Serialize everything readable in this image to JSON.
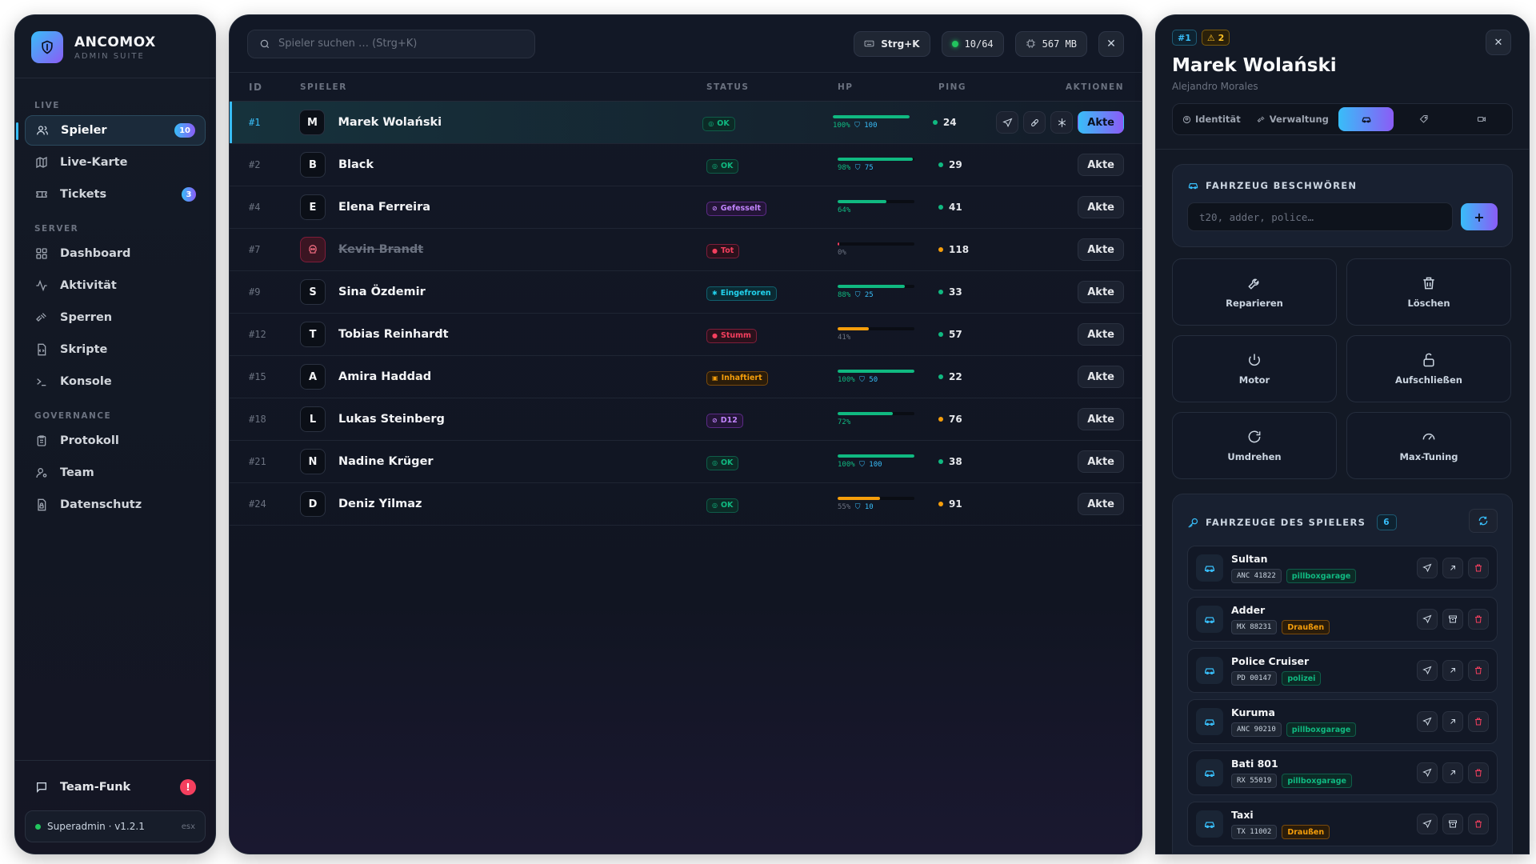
{
  "brand": {
    "name": "ANCOMOX",
    "sub": "ADMIN SUITE"
  },
  "sidebar": {
    "sections": [
      {
        "label": "LIVE",
        "items": [
          {
            "label": "Spieler",
            "icon": "users-icon",
            "badge": "10",
            "active": true
          },
          {
            "label": "Live-Karte",
            "icon": "map-icon"
          },
          {
            "label": "Tickets",
            "icon": "ticket-icon",
            "badge": "3"
          }
        ]
      },
      {
        "label": "SERVER",
        "items": [
          {
            "label": "Dashboard",
            "icon": "grid-icon"
          },
          {
            "label": "Aktivität",
            "icon": "activity-icon"
          },
          {
            "label": "Sperren",
            "icon": "gavel-icon"
          },
          {
            "label": "Skripte",
            "icon": "script-icon"
          },
          {
            "label": "Konsole",
            "icon": "terminal-icon"
          }
        ]
      },
      {
        "label": "GOVERNANCE",
        "items": [
          {
            "label": "Protokoll",
            "icon": "clipboard-icon"
          },
          {
            "label": "Team",
            "icon": "user-gear-icon"
          },
          {
            "label": "Datenschutz",
            "icon": "lock-file-icon"
          }
        ]
      }
    ],
    "team_funk": {
      "label": "Team-Funk",
      "alert": "!"
    },
    "footer": {
      "role": "Superadmin · v1.2.1",
      "tag": "esx"
    }
  },
  "topbar": {
    "search_placeholder": "Spieler suchen … (Strg+K)",
    "shortcut": "Strg+K",
    "players": "10/64",
    "memory": "567 MB",
    "close": "✕"
  },
  "table": {
    "headers": {
      "id": "ID",
      "player": "SPIELER",
      "status": "STATUS",
      "hp": "HP",
      "ping": "PING",
      "actions": "AKTIONEN"
    },
    "action_label": "Akte",
    "rows": [
      {
        "id": "#1",
        "initial": "M",
        "name": "Marek Wolański",
        "status": "OK",
        "status_type": "ok",
        "hp": 1.0,
        "hp_text": "100%",
        "armor": "100",
        "hp_color": "#10b981",
        "ping": "24",
        "ping_color": "#10b981",
        "selected": true
      },
      {
        "id": "#2",
        "initial": "B",
        "name": "Black",
        "status": "OK",
        "status_type": "ok",
        "hp": 0.98,
        "hp_text": "98%",
        "armor": "75",
        "hp_color": "#10b981",
        "ping": "29",
        "ping_color": "#10b981"
      },
      {
        "id": "#4",
        "initial": "E",
        "name": "Elena Ferreira",
        "status": "Gefesselt",
        "status_type": "purple",
        "hp": 0.64,
        "hp_text": "64%",
        "armor": "",
        "hp_color": "#10b981",
        "ping": "41",
        "ping_color": "#10b981"
      },
      {
        "id": "#7",
        "initial": "",
        "name": "Kevin Brandt",
        "status": "Tot",
        "status_type": "red",
        "hp": 0.0,
        "hp_text": "0%",
        "armor": "",
        "hp_color": "#f43f5e",
        "ping": "118",
        "ping_color": "#f59e0b",
        "dead": true
      },
      {
        "id": "#9",
        "initial": "S",
        "name": "Sina Özdemir",
        "status": "Eingefroren",
        "status_type": "cyan",
        "hp": 0.88,
        "hp_text": "88%",
        "armor": "25",
        "hp_color": "#10b981",
        "ping": "33",
        "ping_color": "#10b981"
      },
      {
        "id": "#12",
        "initial": "T",
        "name": "Tobias Reinhardt",
        "status": "Stumm",
        "status_type": "red",
        "hp": 0.41,
        "hp_text": "41%",
        "armor": "",
        "hp_color": "#f59e0b",
        "ping": "57",
        "ping_color": "#10b981"
      },
      {
        "id": "#15",
        "initial": "A",
        "name": "Amira Haddad",
        "status": "Inhaftiert",
        "status_type": "amber",
        "hp": 1.0,
        "hp_text": "100%",
        "armor": "50",
        "hp_color": "#10b981",
        "ping": "22",
        "ping_color": "#10b981"
      },
      {
        "id": "#18",
        "initial": "L",
        "name": "Lukas Steinberg",
        "status": "D12",
        "status_type": "purple",
        "hp": 0.72,
        "hp_text": "72%",
        "armor": "",
        "hp_color": "#10b981",
        "ping": "76",
        "ping_color": "#f59e0b"
      },
      {
        "id": "#21",
        "initial": "N",
        "name": "Nadine Krüger",
        "status": "OK",
        "status_type": "ok",
        "hp": 1.0,
        "hp_text": "100%",
        "armor": "100",
        "hp_color": "#10b981",
        "ping": "38",
        "ping_color": "#10b981"
      },
      {
        "id": "#24",
        "initial": "D",
        "name": "Deniz Yilmaz",
        "status": "OK",
        "status_type": "ok",
        "hp": 0.55,
        "hp_text": "55%",
        "armor": "10",
        "hp_color": "#f59e0b",
        "ping": "91",
        "ping_color": "#f59e0b"
      }
    ]
  },
  "detail": {
    "tag_id": "#1",
    "tag_warn": "⚠ 2",
    "name": "Marek Wolański",
    "sub": "Alejandro Morales",
    "tabs": [
      "Identität",
      "Verwaltung",
      "",
      "",
      ""
    ],
    "spawn": {
      "title": "FAHRZEUG BESCHWÖREN",
      "placeholder": "t20, adder, police…",
      "button": "+"
    },
    "actions": [
      {
        "label": "Reparieren",
        "icon": "wrench-icon"
      },
      {
        "label": "Löschen",
        "icon": "trash-icon"
      },
      {
        "label": "Motor",
        "icon": "power-icon"
      },
      {
        "label": "Aufschließen",
        "icon": "unlock-icon"
      },
      {
        "label": "Umdrehen",
        "icon": "rotate-icon"
      },
      {
        "label": "Max-Tuning",
        "icon": "gauge-icon"
      }
    ],
    "vehicles": {
      "title": "FAHRZEUGE DES SPIELERS",
      "count": "6",
      "items": [
        {
          "name": "Sultan",
          "plate": "ANC 41822",
          "location": "pillboxgarage",
          "loc_type": "green"
        },
        {
          "name": "Adder",
          "plate": "MX 88231",
          "location": "Draußen",
          "loc_type": "amber"
        },
        {
          "name": "Police Cruiser",
          "plate": "PD 00147",
          "location": "polizei",
          "loc_type": "green"
        },
        {
          "name": "Kuruma",
          "plate": "ANC 90210",
          "location": "pillboxgarage",
          "loc_type": "green"
        },
        {
          "name": "Bati 801",
          "plate": "RX 55019",
          "location": "pillboxgarage",
          "loc_type": "green"
        },
        {
          "name": "Taxi",
          "plate": "TX 11002",
          "location": "Draußen",
          "loc_type": "amber"
        }
      ]
    }
  }
}
